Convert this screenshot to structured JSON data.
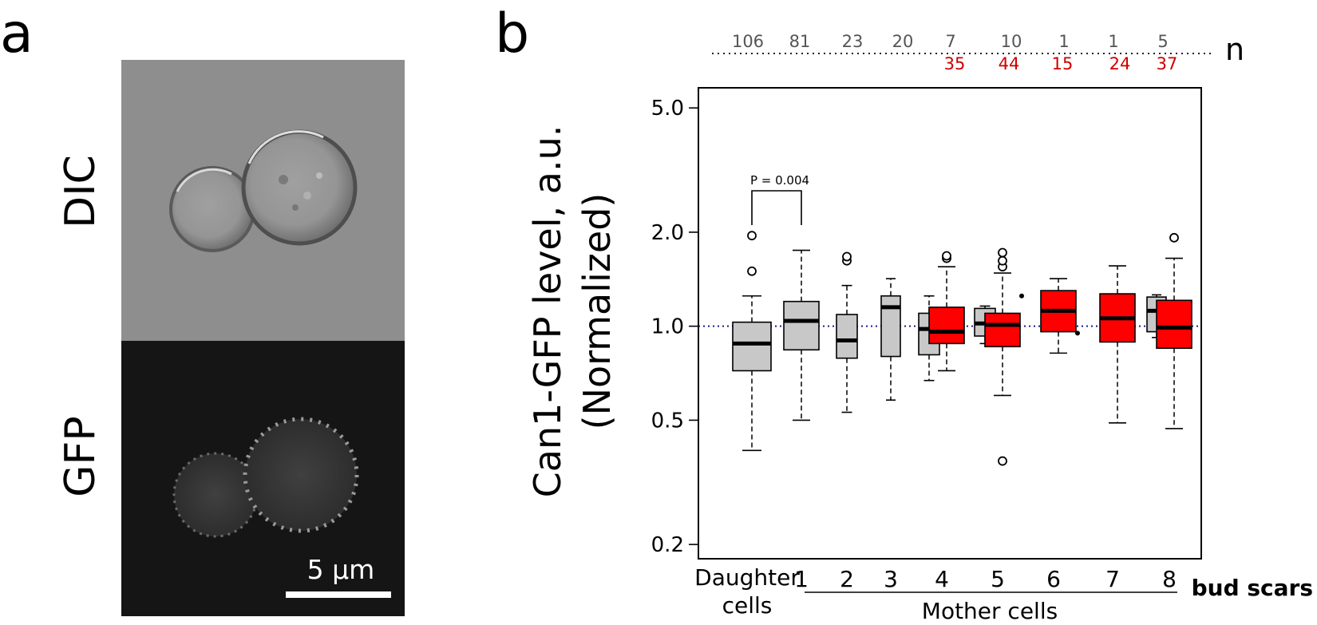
{
  "panel_a": {
    "label": "a",
    "dic_label": "DIC",
    "gfp_label": "GFP",
    "scale_bar": "5 µm"
  },
  "panel_b": {
    "label": "b",
    "n_label": "n",
    "gray_n": [
      "106",
      "81",
      "23",
      "20",
      "7",
      "10",
      "1",
      "1",
      "5"
    ],
    "red_n": [
      "35",
      "44",
      "15",
      "24",
      "37"
    ],
    "pvalue": "P = 0.004",
    "xgroup_daughter_line1": "Daughter",
    "xgroup_daughter_line2": "cells",
    "xgroup_mother": "Mother cells",
    "bud_scars": "bud scars"
  },
  "colors": {
    "gray_box": "#c8c8c8",
    "red_box": "#ff0000",
    "red_text": "#cc0000",
    "ref_line": "#1a1a8c",
    "gray_text": "#555555"
  },
  "chart_data": {
    "type": "box",
    "title": "",
    "ylabel_line1": "Can1-GFP  level, a.u.",
    "ylabel_line2": "(Normalized)",
    "xlabel": "bud scars",
    "yscale": "log",
    "ylim": [
      0.18,
      5.8
    ],
    "yticks": [
      5.0,
      2.0,
      1.0,
      0.5,
      0.2
    ],
    "ytick_labels": [
      "5.0",
      "2.0",
      "1.0",
      "0.5",
      "0.2"
    ],
    "reference_line": 1.0,
    "categories": [
      "Daughter cells",
      "1",
      "2",
      "3",
      "4",
      "5",
      "6",
      "7",
      "8"
    ],
    "tick_labels": [
      "1",
      "2",
      "3",
      "4",
      "5",
      "6",
      "7",
      "8"
    ],
    "series": [
      {
        "name": "gray",
        "boxes": [
          {
            "cat": 0,
            "min": 0.4,
            "q1": 0.72,
            "median": 0.88,
            "q3": 1.03,
            "max": 1.25,
            "outliers": [
              1.5,
              1.95
            ]
          },
          {
            "cat": 1,
            "min": 0.5,
            "q1": 0.84,
            "median": 1.04,
            "q3": 1.2,
            "max": 1.75,
            "outliers": []
          },
          {
            "cat": 2,
            "min": 0.53,
            "q1": 0.79,
            "median": 0.9,
            "q3": 1.09,
            "max": 1.35,
            "outliers": [
              1.62,
              1.67
            ]
          },
          {
            "cat": 3,
            "min": 0.58,
            "q1": 0.8,
            "median": 1.15,
            "q3": 1.25,
            "max": 1.42,
            "outliers": []
          },
          {
            "cat": 4,
            "min": 0.67,
            "q1": 0.81,
            "median": 0.98,
            "q3": 1.1,
            "max": 1.25,
            "outliers": []
          },
          {
            "cat": 5,
            "min": 0.88,
            "q1": 0.93,
            "median": 1.02,
            "q3": 1.14,
            "max": 1.16,
            "outliers": []
          },
          {
            "cat": 6,
            "min": 1.25,
            "q1": 1.25,
            "median": 1.25,
            "q3": 1.25,
            "max": 1.25,
            "outliers": []
          },
          {
            "cat": 7,
            "min": 0.95,
            "q1": 0.95,
            "median": 0.95,
            "q3": 0.95,
            "max": 0.95,
            "outliers": []
          },
          {
            "cat": 8,
            "min": 0.92,
            "q1": 0.96,
            "median": 1.12,
            "q3": 1.24,
            "max": 1.26,
            "outliers": []
          }
        ]
      },
      {
        "name": "red",
        "boxes": [
          {
            "cat": 4,
            "min": 0.72,
            "q1": 0.88,
            "median": 0.96,
            "q3": 1.15,
            "max": 1.55,
            "outliers": [
              1.65,
              1.68
            ]
          },
          {
            "cat": 5,
            "min": 0.6,
            "q1": 0.86,
            "median": 1.01,
            "q3": 1.1,
            "max": 1.48,
            "outliers": [
              0.37,
              1.55,
              1.62,
              1.72
            ]
          },
          {
            "cat": 6,
            "min": 0.82,
            "q1": 0.96,
            "median": 1.12,
            "q3": 1.3,
            "max": 1.42,
            "outliers": []
          },
          {
            "cat": 7,
            "min": 0.49,
            "q1": 0.89,
            "median": 1.06,
            "q3": 1.27,
            "max": 1.56,
            "outliers": []
          },
          {
            "cat": 8,
            "min": 0.47,
            "q1": 0.85,
            "median": 0.99,
            "q3": 1.21,
            "max": 1.65,
            "outliers": [
              1.92
            ]
          }
        ]
      }
    ]
  }
}
